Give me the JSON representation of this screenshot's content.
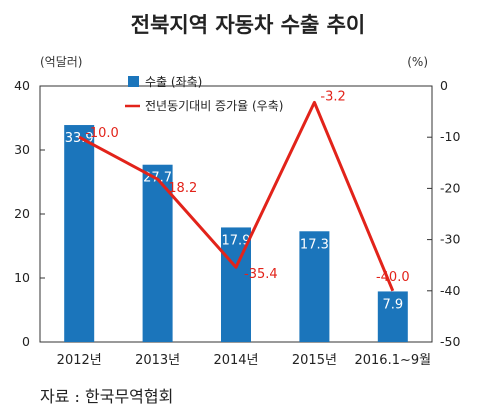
{
  "chart_data": {
    "type": "bar",
    "title": "전북지역 자동차 수출 추이",
    "categories": [
      "2012년",
      "2013년",
      "2014년",
      "2015년",
      "2016.1~9월"
    ],
    "series": [
      {
        "name": "수출 (좌축)",
        "type": "bar",
        "axis": "left",
        "color": "#1b75bb",
        "values": [
          33.9,
          27.7,
          17.9,
          17.3,
          7.9
        ],
        "labels": [
          "33.9",
          "27.7",
          "17.9",
          "17.3",
          "7.9"
        ]
      },
      {
        "name": "전년동기대비 증가율 (우축)",
        "type": "line",
        "axis": "right",
        "color": "#e2231a",
        "values": [
          -10.0,
          -18.2,
          -35.4,
          -3.2,
          -40.0
        ],
        "labels": [
          "-10.0",
          "-18.2",
          "-35.4",
          "-3.2",
          "-40.0"
        ]
      }
    ],
    "y_left": {
      "unit": "(억달러)",
      "min": 0,
      "max": 40,
      "ticks": [
        0,
        10,
        20,
        30,
        40
      ]
    },
    "y_right": {
      "unit": "(%)",
      "min": -50,
      "max": 0,
      "ticks": [
        0,
        -10,
        -20,
        -30,
        -40,
        -50
      ]
    },
    "legend_position": "top-left",
    "grid": false
  },
  "source": "자료 : 한국무역협회"
}
